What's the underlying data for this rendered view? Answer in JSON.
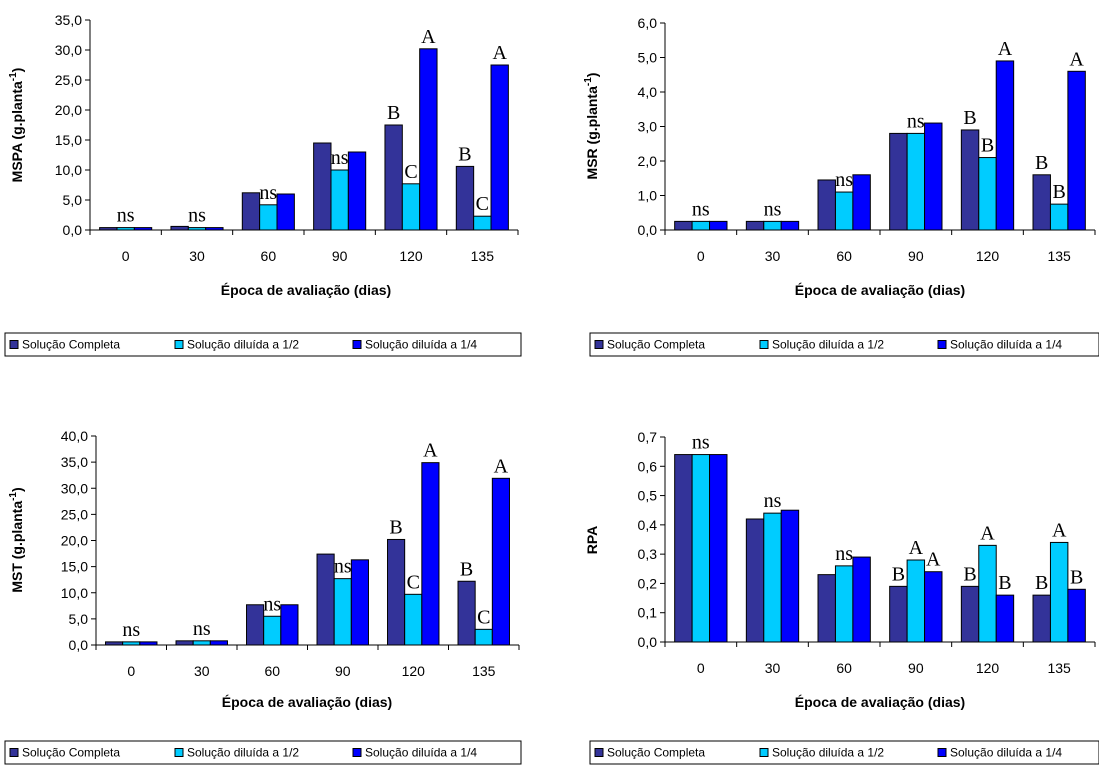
{
  "legend": {
    "items": [
      {
        "label": "Solução Completa",
        "color": "#333399"
      },
      {
        "label": "Solução diluída a 1/2",
        "color": "#00CCFF"
      },
      {
        "label": "Solução diluída a 1/4",
        "color": "#0000FF"
      }
    ]
  },
  "chart_data": [
    {
      "type": "bar",
      "categories": [
        "0",
        "30",
        "60",
        "90",
        "120",
        "135"
      ],
      "series": [
        {
          "name": "Solução Completa",
          "values": [
            0.4,
            0.6,
            6.2,
            14.5,
            17.5,
            10.6
          ]
        },
        {
          "name": "Solução diluída a 1/2",
          "values": [
            0.4,
            0.4,
            4.2,
            10.0,
            7.7,
            2.3
          ]
        },
        {
          "name": "Solução diluída a 1/4",
          "values": [
            0.4,
            0.4,
            6.0,
            13.0,
            30.2,
            27.5
          ]
        }
      ],
      "labels": [
        [
          "",
          "ns",
          ""
        ],
        [
          "",
          "ns",
          ""
        ],
        [
          "",
          "ns",
          ""
        ],
        [
          "",
          "ns",
          ""
        ],
        [
          "B",
          "C",
          "A"
        ],
        [
          "B",
          "C",
          "A"
        ]
      ],
      "ylim": [
        0,
        35
      ],
      "yticks": [
        "0,0",
        "5,0",
        "10,0",
        "15,0",
        "20,0",
        "25,0",
        "30,0",
        "35,0"
      ],
      "ylabel": "MSPA (g.planta",
      "ylabel_sup": "-1",
      "ylabel_end": ")",
      "xlabel": "Época de avaliação (dias)"
    },
    {
      "type": "bar",
      "categories": [
        "0",
        "30",
        "60",
        "90",
        "120",
        "135"
      ],
      "series": [
        {
          "name": "Solução Completa",
          "values": [
            0.25,
            0.25,
            1.45,
            2.8,
            2.9,
            1.6
          ]
        },
        {
          "name": "Solução diluída a 1/2",
          "values": [
            0.25,
            0.25,
            1.1,
            2.8,
            2.1,
            0.75
          ]
        },
        {
          "name": "Solução diluída a 1/4",
          "values": [
            0.25,
            0.25,
            1.6,
            3.1,
            4.9,
            4.6
          ]
        }
      ],
      "labels": [
        [
          "",
          "ns",
          ""
        ],
        [
          "",
          "ns",
          ""
        ],
        [
          "",
          "ns",
          ""
        ],
        [
          "",
          "ns",
          ""
        ],
        [
          "B",
          "B",
          "A"
        ],
        [
          "B",
          "B",
          "A"
        ]
      ],
      "ylim": [
        0,
        6
      ],
      "yticks": [
        "0,0",
        "1,0",
        "2,0",
        "3,0",
        "4,0",
        "5,0",
        "6,0"
      ],
      "ylabel": "MSR (g.planta",
      "ylabel_sup": "-1",
      "ylabel_end": ")",
      "xlabel": "Época de avaliação (dias)"
    },
    {
      "type": "bar",
      "categories": [
        "0",
        "30",
        "60",
        "90",
        "120",
        "135"
      ],
      "series": [
        {
          "name": "Solução Completa",
          "values": [
            0.6,
            0.8,
            7.7,
            17.4,
            20.2,
            12.2
          ]
        },
        {
          "name": "Solução diluída a 1/2",
          "values": [
            0.6,
            0.8,
            5.5,
            12.7,
            9.7,
            3.0
          ]
        },
        {
          "name": "Solução diluída a 1/4",
          "values": [
            0.6,
            0.8,
            7.7,
            16.3,
            34.9,
            31.9
          ]
        }
      ],
      "labels": [
        [
          "",
          "ns",
          ""
        ],
        [
          "",
          "ns",
          ""
        ],
        [
          "",
          "ns",
          ""
        ],
        [
          "",
          "ns",
          ""
        ],
        [
          "B",
          "C",
          "A"
        ],
        [
          "B",
          "C",
          "A"
        ]
      ],
      "ylim": [
        0,
        40
      ],
      "yticks": [
        "0,0",
        "5,0",
        "10,0",
        "15,0",
        "20,0",
        "25,0",
        "30,0",
        "35,0",
        "40,0"
      ],
      "ylabel": "MST (g.planta",
      "ylabel_sup": "-1",
      "ylabel_end": ")",
      "xlabel": "Época de avaliação (dias)"
    },
    {
      "type": "bar",
      "categories": [
        "0",
        "30",
        "60",
        "90",
        "120",
        "135"
      ],
      "series": [
        {
          "name": "Solução Completa",
          "values": [
            0.64,
            0.42,
            0.23,
            0.19,
            0.19,
            0.16
          ]
        },
        {
          "name": "Solução diluída a 1/2",
          "values": [
            0.64,
            0.44,
            0.26,
            0.28,
            0.33,
            0.34
          ]
        },
        {
          "name": "Solução diluída a 1/4",
          "values": [
            0.64,
            0.45,
            0.29,
            0.24,
            0.16,
            0.18
          ]
        }
      ],
      "labels": [
        [
          "",
          "ns",
          ""
        ],
        [
          "",
          "ns",
          ""
        ],
        [
          "",
          "ns",
          ""
        ],
        [
          "B",
          "A",
          "A"
        ],
        [
          "B",
          "A",
          "B"
        ],
        [
          "B",
          "A",
          "B"
        ]
      ],
      "ylim": [
        0,
        0.7
      ],
      "yticks": [
        "0,0",
        "0,1",
        "0,2",
        "0,3",
        "0,4",
        "0,5",
        "0,6",
        "0,7"
      ],
      "ylabel": "RPA",
      "ylabel_sup": "",
      "ylabel_end": "",
      "xlabel": "Época de avaliação (dias)"
    }
  ]
}
